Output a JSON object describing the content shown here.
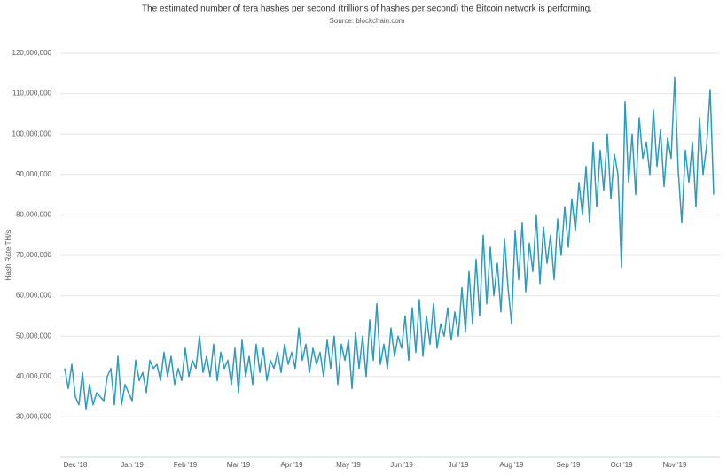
{
  "chart_data": {
    "type": "line",
    "title": "The estimated number of tera hashes per second (trillions of hashes per second) the Bitcoin network is performing.",
    "subtitle": "Source: blockchain.com",
    "y_label": "Hash Rate TH/s",
    "categories": [
      null,
      null,
      null,
      "Dec '18",
      null,
      null,
      null,
      null,
      null,
      null,
      null,
      null,
      null,
      null,
      null,
      null,
      null,
      null,
      null,
      "Jan '19",
      null,
      null,
      null,
      null,
      null,
      null,
      null,
      null,
      null,
      null,
      null,
      null,
      null,
      null,
      "Feb '19",
      null,
      null,
      null,
      null,
      null,
      null,
      null,
      null,
      null,
      null,
      null,
      null,
      null,
      null,
      "Mar '19",
      null,
      null,
      null,
      null,
      null,
      null,
      null,
      null,
      null,
      null,
      null,
      null,
      null,
      null,
      "Apr '19",
      null,
      null,
      null,
      null,
      null,
      null,
      null,
      null,
      null,
      null,
      null,
      null,
      null,
      null,
      null,
      "May '19",
      null,
      null,
      null,
      null,
      null,
      null,
      null,
      null,
      null,
      null,
      null,
      null,
      null,
      null,
      "Jun '19",
      null,
      null,
      null,
      null,
      null,
      null,
      null,
      null,
      null,
      null,
      null,
      null,
      null,
      null,
      null,
      "Jul '19",
      null,
      null,
      null,
      null,
      null,
      null,
      null,
      null,
      null,
      null,
      null,
      null,
      null,
      null,
      "Aug '19",
      null,
      null,
      null,
      null,
      null,
      null,
      null,
      null,
      null,
      null,
      null,
      null,
      null,
      null,
      null,
      "Sep '19",
      null,
      null,
      null,
      null,
      null,
      null,
      null,
      null,
      null,
      null,
      null,
      null,
      null,
      null,
      "Oct '19",
      null,
      null,
      null,
      null,
      null,
      null,
      null,
      null,
      null,
      null,
      null,
      null,
      null,
      null,
      "Nov '19",
      null,
      null,
      null,
      null,
      null,
      null,
      null,
      null,
      null,
      null,
      null
    ],
    "series": [
      {
        "name": "Hash Rate",
        "color": "#2b9bbf",
        "values": [
          42000000,
          37000000,
          43000000,
          35000000,
          33000000,
          41000000,
          32000000,
          38000000,
          33000000,
          36000000,
          35000000,
          34000000,
          40000000,
          42000000,
          33000000,
          45000000,
          33000000,
          38000000,
          36000000,
          34000000,
          44000000,
          39000000,
          41000000,
          36000000,
          44000000,
          42000000,
          43000000,
          39000000,
          46000000,
          40000000,
          45000000,
          38000000,
          42000000,
          39000000,
          47000000,
          40000000,
          44000000,
          42000000,
          50000000,
          41000000,
          45000000,
          40000000,
          48000000,
          39000000,
          46000000,
          42000000,
          44000000,
          38000000,
          47000000,
          36000000,
          49000000,
          40000000,
          45000000,
          38000000,
          48000000,
          41000000,
          47000000,
          39000000,
          44000000,
          42000000,
          46000000,
          41000000,
          48000000,
          43000000,
          46000000,
          42000000,
          52000000,
          44000000,
          48000000,
          41000000,
          47000000,
          43000000,
          46000000,
          40000000,
          49000000,
          42000000,
          50000000,
          38000000,
          48000000,
          44000000,
          49000000,
          37000000,
          51000000,
          42000000,
          50000000,
          40000000,
          54000000,
          44000000,
          58000000,
          43000000,
          48000000,
          42000000,
          52000000,
          45000000,
          50000000,
          47000000,
          55000000,
          44000000,
          57000000,
          46000000,
          59000000,
          45000000,
          55000000,
          48000000,
          58000000,
          47000000,
          53000000,
          50000000,
          57000000,
          49000000,
          56000000,
          50000000,
          62000000,
          51000000,
          66000000,
          53000000,
          69000000,
          55000000,
          75000000,
          58000000,
          72000000,
          60000000,
          68000000,
          56000000,
          74000000,
          62000000,
          53000000,
          76000000,
          64000000,
          78000000,
          61000000,
          73000000,
          66000000,
          80000000,
          63000000,
          77000000,
          68000000,
          75000000,
          64000000,
          79000000,
          70000000,
          82000000,
          72000000,
          84000000,
          76000000,
          88000000,
          80000000,
          92000000,
          78000000,
          98000000,
          82000000,
          96000000,
          86000000,
          100000000,
          84000000,
          95000000,
          90000000,
          67000000,
          108000000,
          88000000,
          100000000,
          85000000,
          104000000,
          94000000,
          98000000,
          90000000,
          106000000,
          92000000,
          101000000,
          87000000,
          99000000,
          94000000,
          114000000,
          91000000,
          78000000,
          96000000,
          88000000,
          98000000,
          82000000,
          104000000,
          90000000,
          97000000,
          111000000,
          85000000
        ]
      }
    ],
    "ylim": [
      20000000,
      120000000
    ],
    "yticks": [
      {
        "value": 30000000,
        "label": "30,000,000"
      },
      {
        "value": 40000000,
        "label": "40,000,000"
      },
      {
        "value": 50000000,
        "label": "50,000,000"
      },
      {
        "value": 60000000,
        "label": "60,000,000"
      },
      {
        "value": 70000000,
        "label": "70,000,000"
      },
      {
        "value": 80000000,
        "label": "80,000,000"
      },
      {
        "value": 90000000,
        "label": "90,000,000"
      },
      {
        "value": 100000000,
        "label": "100,000,000"
      },
      {
        "value": 110000000,
        "label": "110,000,000"
      },
      {
        "value": 120000000,
        "label": "120,000,000"
      }
    ],
    "grid": true
  }
}
